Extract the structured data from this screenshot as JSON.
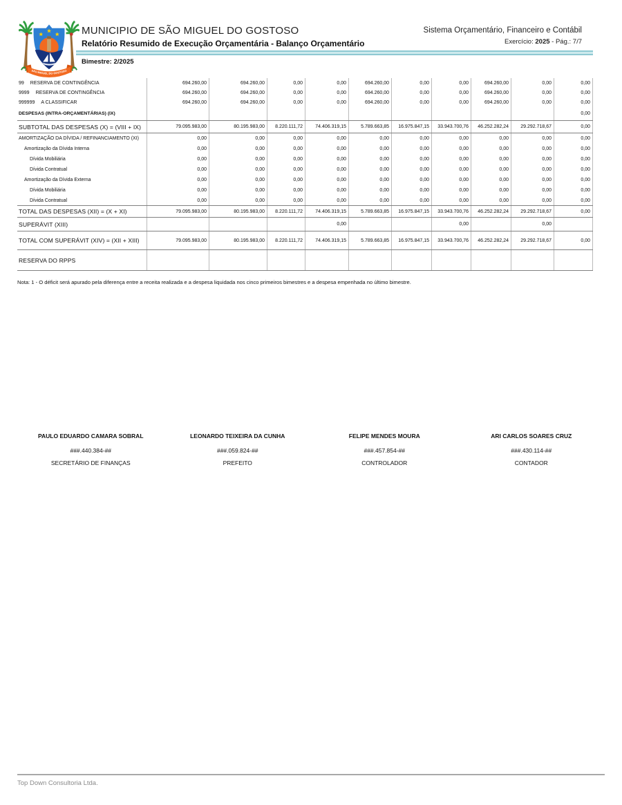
{
  "header": {
    "municipality": "MUNICIPIO DE SÃO MIGUEL DO GOSTOSO",
    "report_title": "Relatório Resumido de Execução Orçamentária - Balanço Orçamentário",
    "system_name": "Sistema Orçamentário, Financeiro e Contábil",
    "exercise_label": "Exercício:",
    "exercise_value": "2025",
    "page_label": "-   Pág.: 7/7",
    "bimester": "Bimestre: 2/2025",
    "logo_banner_text": "SÃO MIGUEL DO GOSTOSO"
  },
  "colors": {
    "teal_bar": "#cdeaed",
    "teal_bar_edge": "#8ec9d2",
    "table_hline": "#808080",
    "table_vline": "#b9b9b9",
    "logo_blue": "#2d7fd3",
    "logo_navy": "#16337d",
    "logo_orange": "#f26a21",
    "logo_green": "#2f9e3f",
    "logo_star": "#ffd200"
  },
  "table": {
    "rows": [
      {
        "code": "99",
        "label": "RESERVA DE CONTINGÊNCIA",
        "values": [
          "694.260,00",
          "694.260,00",
          "0,00",
          "0,00",
          "694.260,00",
          "0,00",
          "0,00",
          "694.260,00",
          "0,00",
          "0,00"
        ]
      },
      {
        "code": "9999",
        "label": "RESERVA DE CONTINGÊNCIA",
        "values": [
          "694.260,00",
          "694.260,00",
          "0,00",
          "0,00",
          "694.260,00",
          "0,00",
          "0,00",
          "694.260,00",
          "0,00",
          "0,00"
        ]
      },
      {
        "code": "999999",
        "label": "A CLASSIFICAR",
        "values": [
          "694.260,00",
          "694.260,00",
          "0,00",
          "0,00",
          "694.260,00",
          "0,00",
          "0,00",
          "694.260,00",
          "0,00",
          "0,00"
        ]
      },
      {
        "code": "",
        "label": "DESPESAS (INTRA-ORÇAMENTÁRIAS) (IX)",
        "values": [
          "",
          "",
          "",
          "",
          "",
          "",
          "",
          "",
          "",
          "0,00"
        ]
      },
      {
        "code": "",
        "label": "SUBTOTAL DAS DESPESAS (X) = (VIII + IX)",
        "values": [
          "79.095.983,00",
          "80.195.983,00",
          "8.220.111,72",
          "74.406.319,15",
          "5.789.663,85",
          "16.975.847,15",
          "33.943.700,76",
          "46.252.282,24",
          "29.292.718,67",
          "0,00"
        ]
      },
      {
        "code": "",
        "label": "AMORTIZAÇÃO DA DÍVIDA / REFINANCIAMENTO (XI)",
        "values": [
          "0,00",
          "0,00",
          "0,00",
          "0,00",
          "0,00",
          "0,00",
          "0,00",
          "0,00",
          "0,00",
          "0,00"
        ]
      },
      {
        "code": "",
        "label": "Amortização da Dívida Interna",
        "values": [
          "0,00",
          "0,00",
          "0,00",
          "0,00",
          "0,00",
          "0,00",
          "0,00",
          "0,00",
          "0,00",
          "0,00"
        ]
      },
      {
        "code": "",
        "label": "Dívida Mobiliária",
        "values": [
          "0,00",
          "0,00",
          "0,00",
          "0,00",
          "0,00",
          "0,00",
          "0,00",
          "0,00",
          "0,00",
          "0,00"
        ]
      },
      {
        "code": "",
        "label": "Dívida Contratual",
        "values": [
          "0,00",
          "0,00",
          "0,00",
          "0,00",
          "0,00",
          "0,00",
          "0,00",
          "0,00",
          "0,00",
          "0,00"
        ]
      },
      {
        "code": "",
        "label": "Amortização da Dívida Externa",
        "values": [
          "0,00",
          "0,00",
          "0,00",
          "0,00",
          "0,00",
          "0,00",
          "0,00",
          "0,00",
          "0,00",
          "0,00"
        ]
      },
      {
        "code": "",
        "label": "Dívida Mobiliária",
        "values": [
          "0,00",
          "0,00",
          "0,00",
          "0,00",
          "0,00",
          "0,00",
          "0,00",
          "0,00",
          "0,00",
          "0,00"
        ]
      },
      {
        "code": "",
        "label": "Dívida Contratual",
        "values": [
          "0,00",
          "0,00",
          "0,00",
          "0,00",
          "0,00",
          "0,00",
          "0,00",
          "0,00",
          "0,00",
          "0,00"
        ]
      },
      {
        "code": "",
        "label": "TOTAL DAS DESPESAS (XII) = (X + XI)",
        "values": [
          "79.095.983,00",
          "80.195.983,00",
          "8.220.111,72",
          "74.406.319,15",
          "5.789.663,85",
          "16.975.847,15",
          "33.943.700,76",
          "46.252.282,24",
          "29.292.718,67",
          "0,00"
        ]
      },
      {
        "code": "",
        "label": "SUPERÁVIT (XIII)",
        "values": [
          "",
          "",
          "",
          "0,00",
          "",
          "",
          "0,00",
          "",
          "0,00",
          ""
        ]
      },
      {
        "code": "",
        "label": "TOTAL COM SUPERÁVIT (XIV) = (XII + XIII)",
        "values": [
          "79.095.983,00",
          "80.195.983,00",
          "8.220.111,72",
          "74.406.319,15",
          "5.789.663,85",
          "16.975.847,15",
          "33.943.700,76",
          "46.252.282,24",
          "29.292.718,67",
          "0,00"
        ]
      },
      {
        "code": "",
        "label": "RESERVA DO RPPS",
        "values": [
          "",
          "",
          "",
          "",
          "",
          "",
          "",
          "",
          "",
          ""
        ]
      }
    ]
  },
  "note": "Nota: 1 - O déficit será apurado pela diferença entre a receita realizada e a despesa liquidada nos cinco primeiros bimestres e a despesa empenhada no último bimestre.",
  "signatures": [
    {
      "name": "PAULO EDUARDO CAMARA SOBRAL",
      "cpf": "###.440.384-##",
      "role": "SECRETÁRIO DE FINANÇAS"
    },
    {
      "name": "LEONARDO TEIXEIRA DA CUNHA",
      "cpf": "###.059.824-##",
      "role": "PREFEITO"
    },
    {
      "name": "FELIPE MENDES MOURA",
      "cpf": "###.457.854-##",
      "role": "CONTROLADOR"
    },
    {
      "name": "ARI CARLOS SOARES CRUZ",
      "cpf": "###.430.114-##",
      "role": "CONTADOR"
    }
  ],
  "footer": {
    "company": "Top Down Consultoria Ltda."
  }
}
